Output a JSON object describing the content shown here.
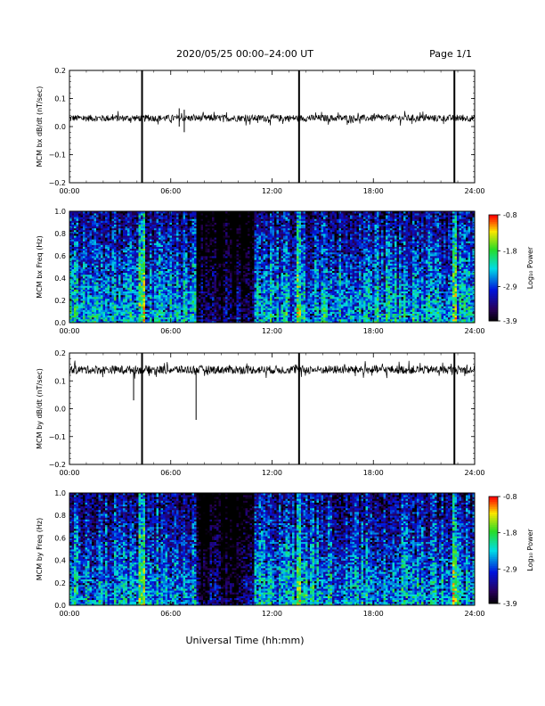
{
  "header": {
    "title": "2020/05/25  00:00–24:00 UT",
    "page": "Page 1/1"
  },
  "x_axis_label": "Universal Time (hh:mm)",
  "chart_data": [
    {
      "type": "line",
      "ylabel": "MCM bx dB/dt (nT/sec)",
      "xlim": [
        0,
        24
      ],
      "ylim": [
        -0.2,
        0.2
      ],
      "x_ticks": [
        "00:00",
        "06:00",
        "12:00",
        "18:00",
        "24:00"
      ],
      "y_ticks": [
        "0.2",
        "0.1",
        "0.0",
        "−0.1",
        "−0.2"
      ],
      "y_tick_values": [
        0.2,
        0.1,
        0.0,
        -0.1,
        -0.2
      ],
      "baseline": 0.03,
      "noise_amplitude": 0.012,
      "spikes": [
        {
          "x": 4.3,
          "low": -0.2,
          "high": 0.2
        },
        {
          "x": 13.6,
          "low": -0.2,
          "high": 0.2
        },
        {
          "x": 22.8,
          "low": -0.2,
          "high": 0.2
        },
        {
          "x": 6.5,
          "low": 0.0,
          "high": 0.065
        },
        {
          "x": 6.8,
          "low": -0.02,
          "high": 0.06
        }
      ]
    },
    {
      "type": "heatmap",
      "ylabel": "MCM bx Freq (Hz)",
      "xlim": [
        0,
        24
      ],
      "ylim": [
        0.0,
        1.0
      ],
      "x_ticks": [
        "00:00",
        "06:00",
        "12:00",
        "18:00",
        "24:00"
      ],
      "y_ticks": [
        "1.0",
        "0.8",
        "0.6",
        "0.4",
        "0.2",
        "0.0"
      ],
      "y_tick_values": [
        1.0,
        0.8,
        0.6,
        0.4,
        0.2,
        0.0
      ],
      "colorbar": {
        "label": "Log₁₀ Power",
        "range": [
          -3.9,
          -0.8
        ],
        "ticks": [
          "-0.8",
          "-1.8",
          "-2.9",
          "-3.9"
        ],
        "tick_values": [
          -0.8,
          -1.85,
          -2.9,
          -3.9
        ]
      },
      "quiet_interval_hours": [
        7.5,
        11.0
      ],
      "bright_bands_hours": [
        4.3,
        13.6,
        22.8
      ]
    },
    {
      "type": "line",
      "ylabel": "MCM by dB/dt (nT/sec)",
      "xlim": [
        0,
        24
      ],
      "ylim": [
        -0.2,
        0.2
      ],
      "x_ticks": [
        "00:00",
        "06:00",
        "12:00",
        "18:00",
        "24:00"
      ],
      "y_ticks": [
        "0.2",
        "0.1",
        "0.0",
        "−0.1",
        "−0.2"
      ],
      "y_tick_values": [
        0.2,
        0.1,
        0.0,
        -0.1,
        -0.2
      ],
      "baseline": 0.14,
      "noise_amplitude": 0.015,
      "spikes": [
        {
          "x": 4.3,
          "low": -0.2,
          "high": 0.2
        },
        {
          "x": 13.6,
          "low": -0.2,
          "high": 0.2
        },
        {
          "x": 22.8,
          "low": -0.2,
          "high": 0.2
        },
        {
          "x": 7.5,
          "low": -0.04,
          "high": 0.14
        },
        {
          "x": 3.8,
          "low": 0.03,
          "high": 0.14
        }
      ]
    },
    {
      "type": "heatmap",
      "ylabel": "MCM by Freq (Hz)",
      "xlim": [
        0,
        24
      ],
      "ylim": [
        0.0,
        1.0
      ],
      "x_ticks": [
        "00:00",
        "06:00",
        "12:00",
        "18:00",
        "24:00"
      ],
      "y_ticks": [
        "1.0",
        "0.8",
        "0.6",
        "0.4",
        "0.2",
        "0.0"
      ],
      "y_tick_values": [
        1.0,
        0.8,
        0.6,
        0.4,
        0.2,
        0.0
      ],
      "colorbar": {
        "label": "Log₁₀ Power",
        "range": [
          -3.9,
          -0.8
        ],
        "ticks": [
          "-0.8",
          "-1.8",
          "-2.9",
          "-3.9"
        ],
        "tick_values": [
          -0.8,
          -1.85,
          -2.9,
          -3.9
        ]
      },
      "quiet_interval_hours": [
        7.5,
        11.0
      ],
      "bright_bands_hours": [
        4.3,
        13.6,
        22.8
      ]
    }
  ]
}
